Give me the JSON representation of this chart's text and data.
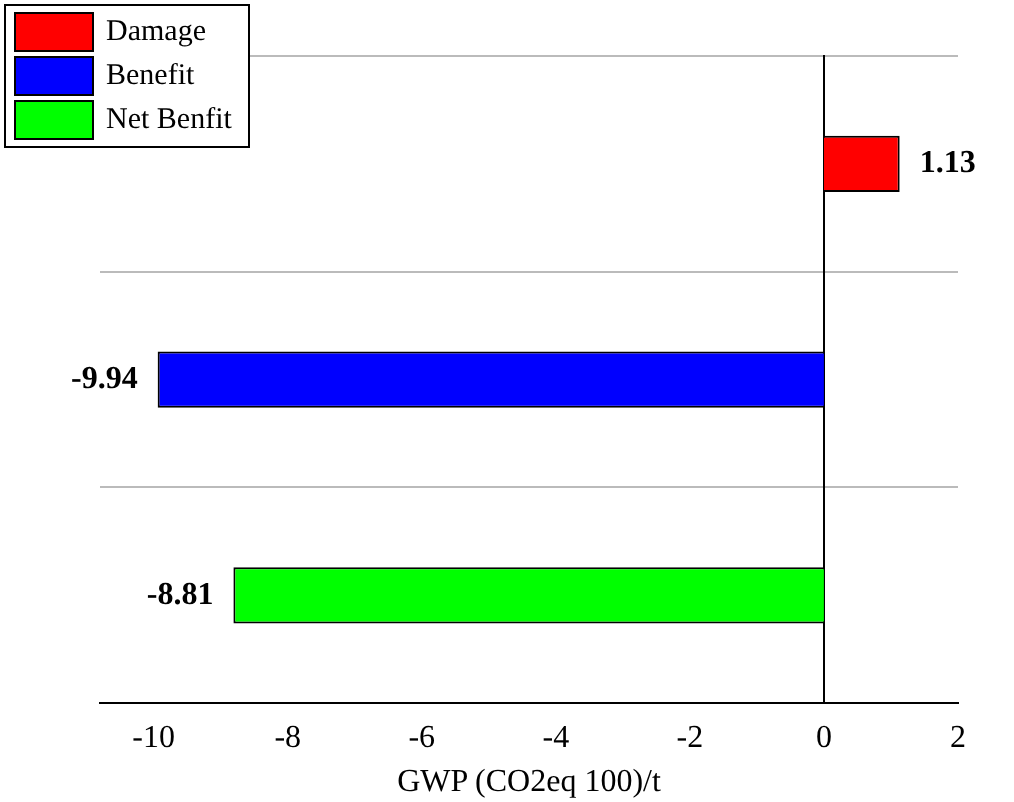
{
  "chart_data": {
    "type": "bar",
    "orientation": "horizontal",
    "xlabel": "GWP (CO2eq 100)/t",
    "categories": [
      null,
      null,
      null
    ],
    "series": [
      {
        "name": "Damage",
        "color": "#ff0000",
        "values": [
          1.13,
          null,
          null
        ]
      },
      {
        "name": "Benefit",
        "color": "#0000ff",
        "values": [
          null,
          -9.94,
          null
        ]
      },
      {
        "name": "Net Benfit",
        "color": "#00ff00",
        "values": [
          null,
          null,
          -8.81
        ]
      }
    ],
    "xlim": [
      -10.8,
      2
    ],
    "xticks": [
      -10,
      -8,
      -6,
      -4,
      -2,
      0,
      2
    ],
    "tick_labels": "x",
    "grid": "y",
    "legend": "top left",
    "data_labels": true
  }
}
